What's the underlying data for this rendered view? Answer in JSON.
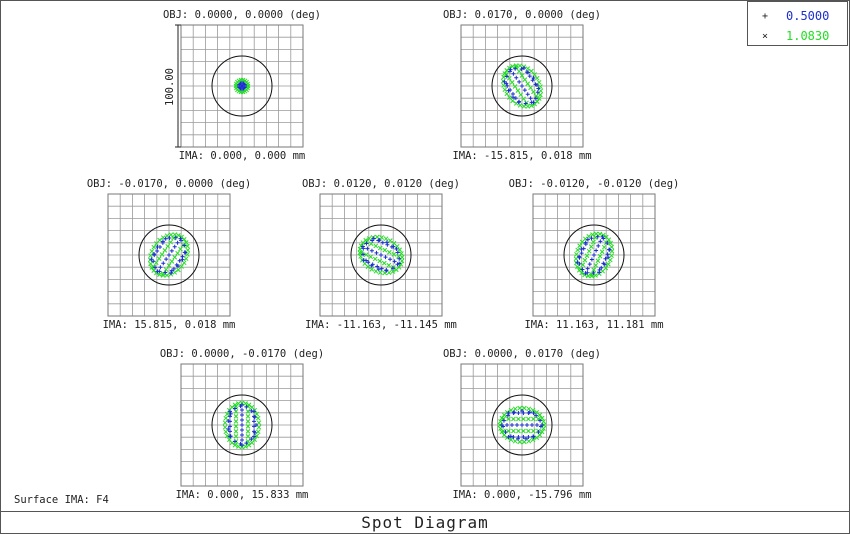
{
  "chart_data": {
    "type": "scatter",
    "title": "Spot Diagram",
    "surface_label": "Surface IMA: F4",
    "scale_label": "100.00",
    "legend_placement": "top-right",
    "series": [
      {
        "name": "0.5000",
        "marker": "+",
        "color": "#1b2fd0"
      },
      {
        "name": "1.0830",
        "marker": "×",
        "color": "#22dd22"
      }
    ],
    "grid": true,
    "fields": [
      {
        "obj": "OBJ: 0.0000, 0.0000 (deg)",
        "ima": "IMA: 0.000, 0.000 mm",
        "pattern": "point",
        "angle_deg": 0
      },
      {
        "obj": "OBJ: 0.0170, 0.0000 (deg)",
        "ima": "IMA: -15.815, 0.018 mm",
        "pattern": "ellipse",
        "angle_deg": 55
      },
      {
        "obj": "OBJ: -0.0170, 0.0000 (deg)",
        "ima": "IMA: 15.815, 0.018 mm",
        "pattern": "ellipse",
        "angle_deg": -55
      },
      {
        "obj": "OBJ: 0.0120, 0.0120 (deg)",
        "ima": "IMA: -11.163, -11.145 mm",
        "pattern": "ellipse",
        "angle_deg": 25
      },
      {
        "obj": "OBJ: -0.0120, -0.0120 (deg)",
        "ima": "IMA: 11.163, 11.181 mm",
        "pattern": "ellipse",
        "angle_deg": -65
      },
      {
        "obj": "OBJ: 0.0000, -0.0170 (deg)",
        "ima": "IMA: 0.000, 15.833 mm",
        "pattern": "ellipse",
        "angle_deg": 90
      },
      {
        "obj": "OBJ: 0.0000, 0.0170 (deg)",
        "ima": "IMA: 0.000, -15.796 mm",
        "pattern": "ellipse",
        "angle_deg": 0
      }
    ]
  }
}
